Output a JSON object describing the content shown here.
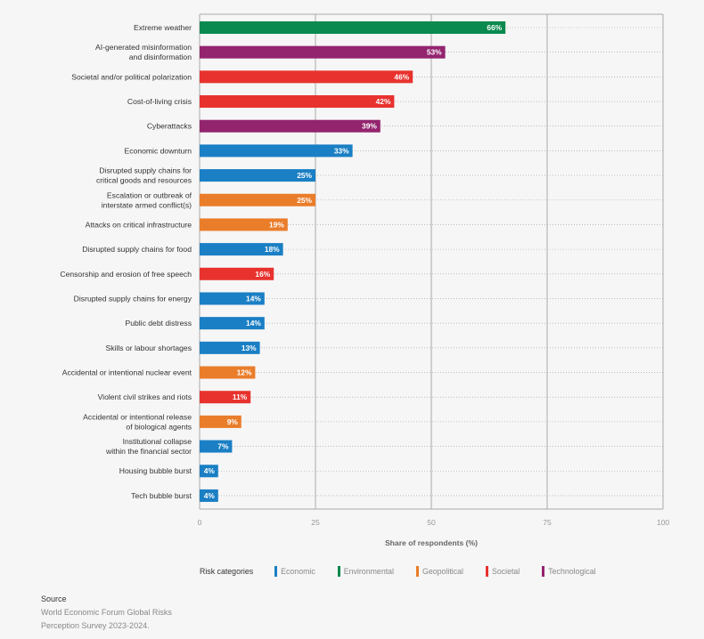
{
  "chart_data": {
    "type": "bar",
    "orientation": "horizontal",
    "xlabel": "Share of respondents (%)",
    "xlim": [
      0,
      100
    ],
    "xticks": [
      "0",
      "25",
      "50",
      "75",
      "100"
    ],
    "grid": true,
    "categories": [
      "Extreme weather",
      "AI-generated misinformation\nand disinformation",
      "Societal and/or political polarization",
      "Cost-of-living crisis",
      "Cyberattacks",
      "Economic downturn",
      "Disrupted supply chains for\ncritical goods and resources",
      "Escalation or outbreak of\ninterstate armed conflict(s)",
      "Attacks on critical infrastructure",
      "Disrupted supply chains for food",
      "Censorship and erosion of free speech",
      "Disrupted supply chains for energy",
      "Public debt distress",
      "Skills or labour shortages",
      "Accidental or intentional nuclear event",
      "Violent civil strikes and riots",
      "Accidental or intentional release\nof biological agents",
      "Institutional collapse\nwithin the financial sector",
      "Housing bubble burst",
      "Tech bubble burst"
    ],
    "values": [
      66,
      53,
      46,
      42,
      39,
      33,
      25,
      25,
      19,
      18,
      16,
      14,
      14,
      13,
      12,
      11,
      9,
      7,
      4,
      4
    ],
    "value_labels": [
      "66%",
      "53%",
      "46%",
      "42%",
      "39%",
      "33%",
      "25%",
      "25%",
      "19%",
      "18%",
      "16%",
      "14%",
      "14%",
      "13%",
      "12%",
      "11%",
      "9%",
      "7%",
      "4%",
      "4%"
    ],
    "bar_categories": [
      "Environmental",
      "Technological",
      "Societal",
      "Societal",
      "Technological",
      "Economic",
      "Economic",
      "Geopolitical",
      "Geopolitical",
      "Economic",
      "Societal",
      "Economic",
      "Economic",
      "Economic",
      "Geopolitical",
      "Societal",
      "Geopolitical",
      "Economic",
      "Economic",
      "Economic"
    ],
    "legend_title": "Risk categories",
    "legend": [
      {
        "name": "Economic",
        "color": "#1a7fc4"
      },
      {
        "name": "Environmental",
        "color": "#0a8a4e"
      },
      {
        "name": "Geopolitical",
        "color": "#ea7d2a"
      },
      {
        "name": "Societal",
        "color": "#e8322e"
      },
      {
        "name": "Technological",
        "color": "#93246e"
      }
    ]
  },
  "source": {
    "heading": "Source",
    "line1": "World Economic Forum Global Risks",
    "line2": "Perception Survey 2023-2024."
  }
}
